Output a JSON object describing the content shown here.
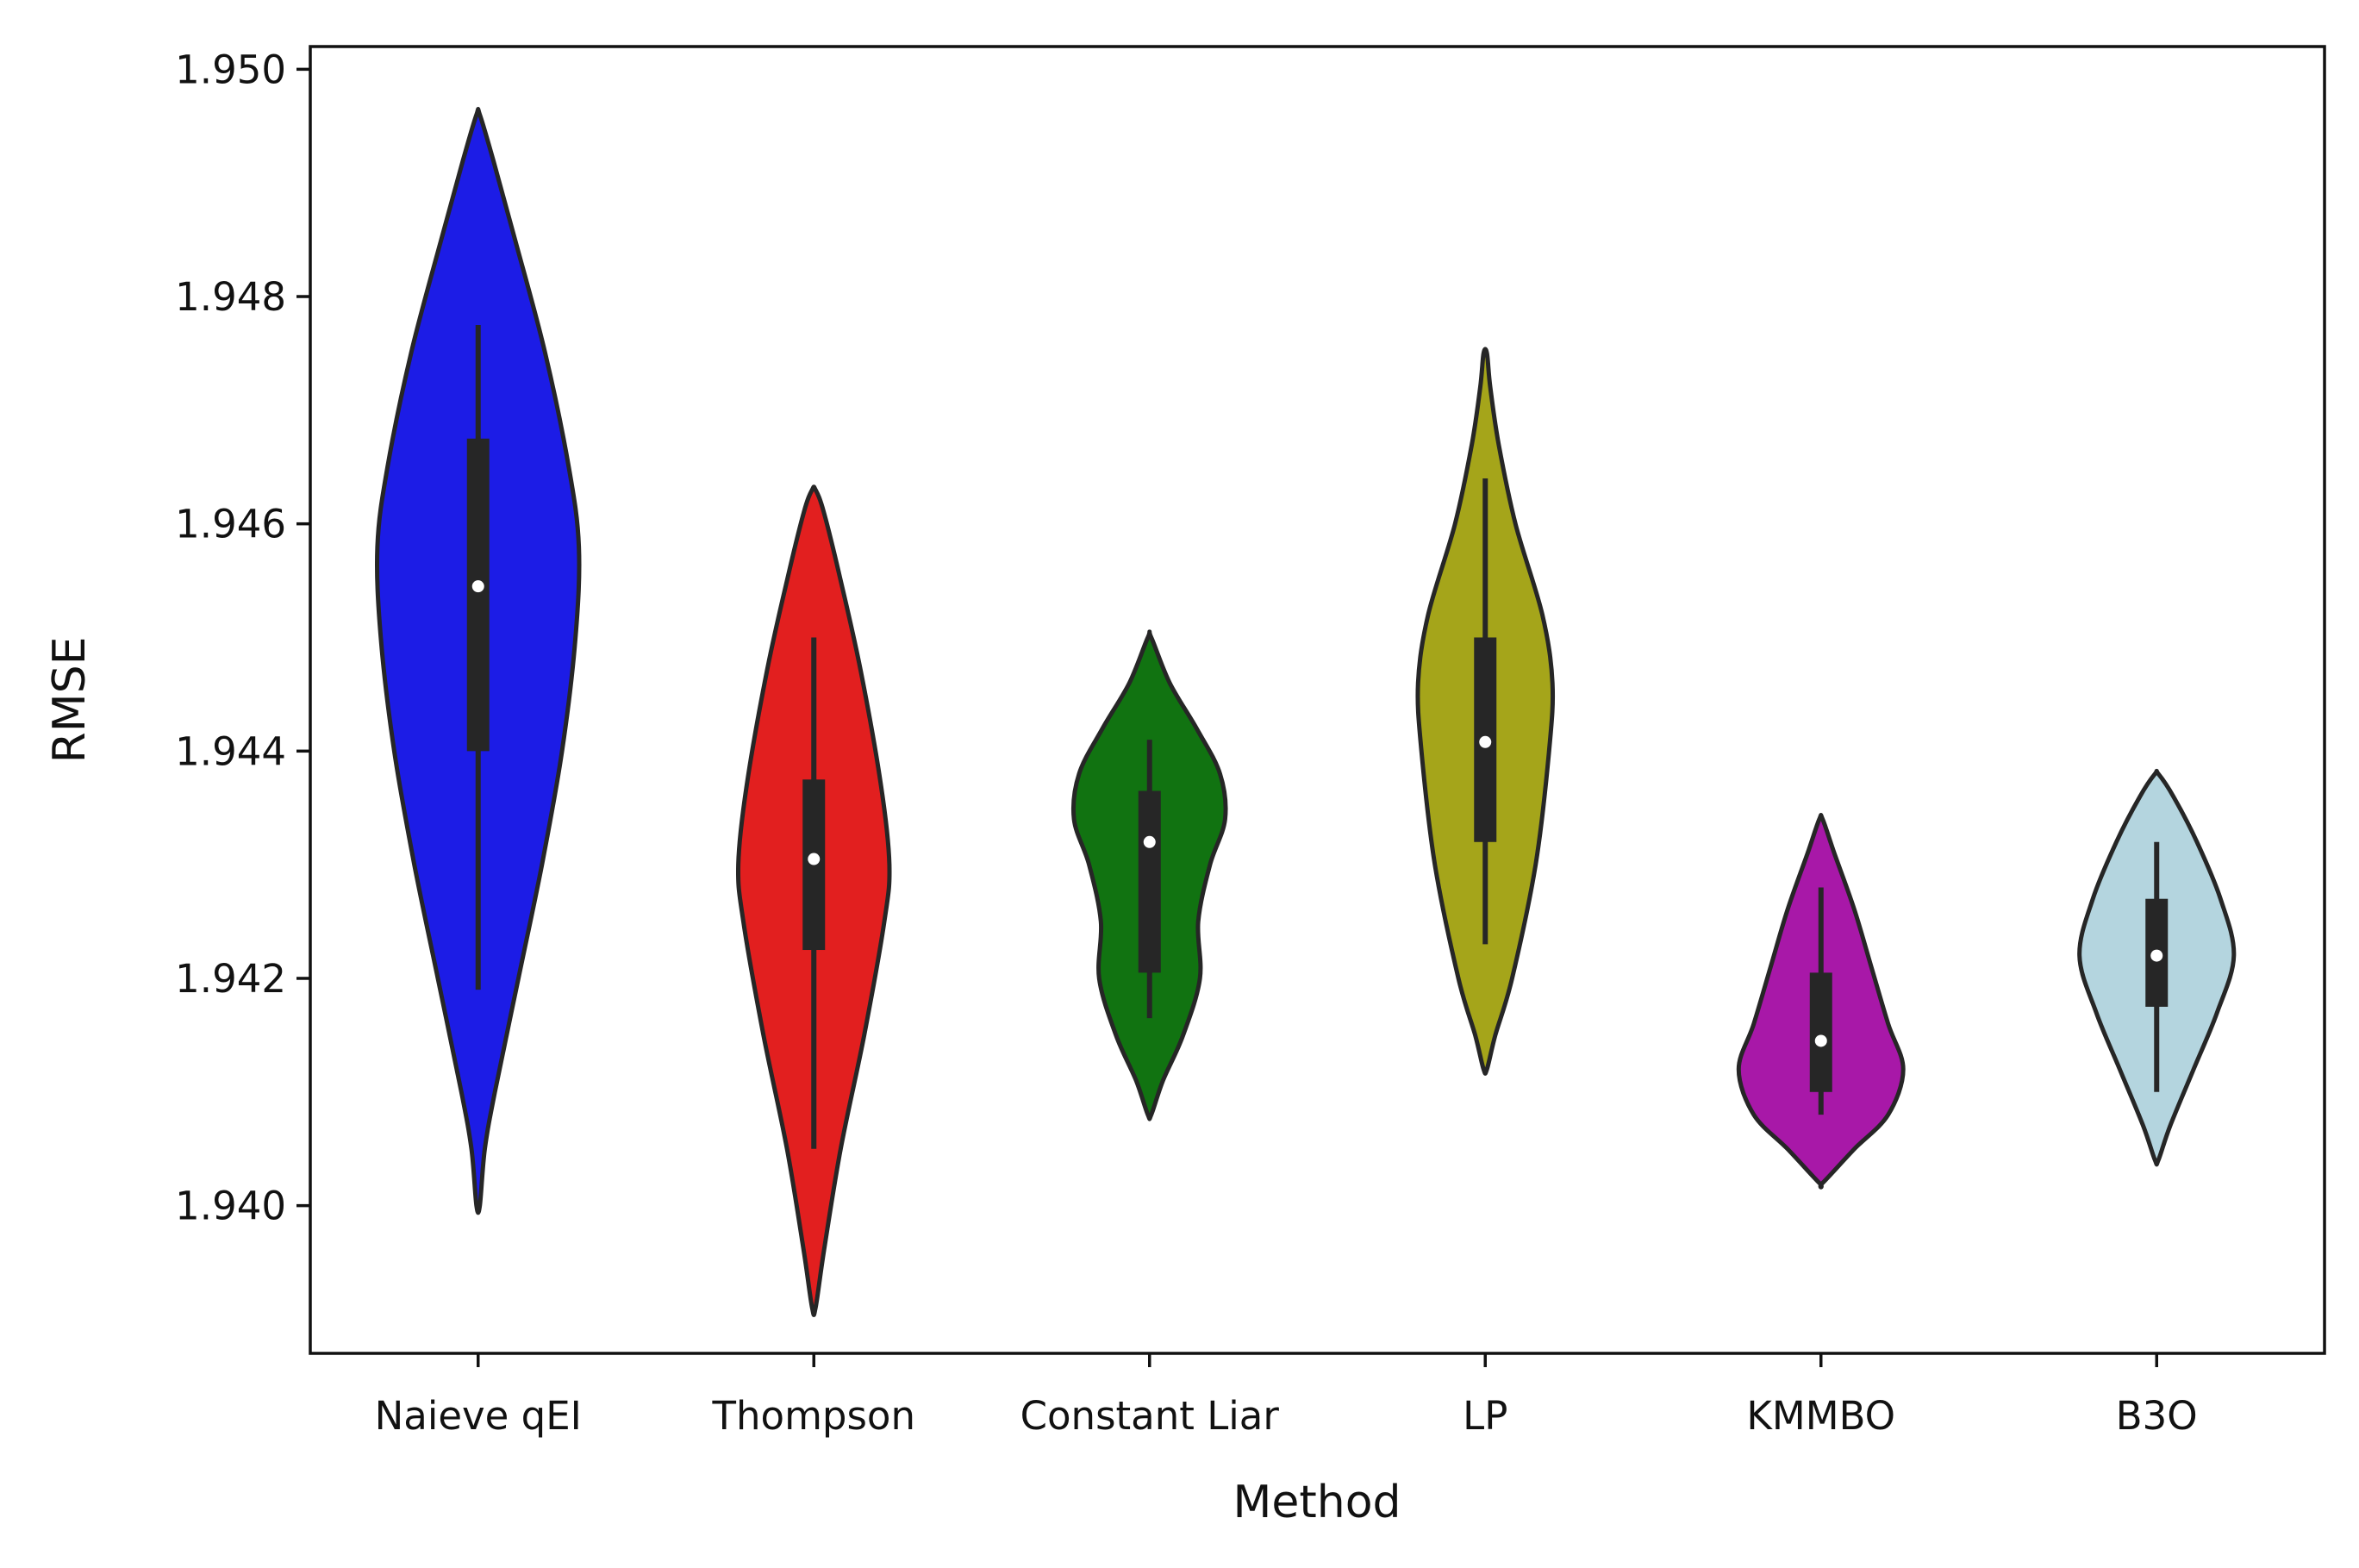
{
  "chart_data": {
    "type": "violin",
    "xlabel": "Method",
    "ylabel": "RMSE",
    "categories": [
      "Naieve qEI",
      "Thompson",
      "Constant Liar",
      "LP",
      "KMMBO",
      "B3O"
    ],
    "ylim": [
      1.9387,
      1.9502
    ],
    "yticks": [
      1.94,
      1.942,
      1.944,
      1.946,
      1.948,
      1.95
    ],
    "ytick_labels": [
      "1.940",
      "1.942",
      "1.944",
      "1.946",
      "1.948",
      "1.950"
    ],
    "grid": false,
    "series": [
      {
        "category": "Naieve qEI",
        "color": "#1c1ce6",
        "box": {
          "whisker_low": 1.9419,
          "q1": 1.944,
          "median": 1.94545,
          "q3": 1.94675,
          "whisker_high": 1.94775
        },
        "density": [
          {
            "y": 1.94,
            "w": 0.005
          },
          {
            "y": 1.9405,
            "w": 0.02
          },
          {
            "y": 1.941,
            "w": 0.05
          },
          {
            "y": 1.942,
            "w": 0.12
          },
          {
            "y": 1.943,
            "w": 0.19
          },
          {
            "y": 1.944,
            "w": 0.25
          },
          {
            "y": 1.945,
            "w": 0.29
          },
          {
            "y": 1.9458,
            "w": 0.3
          },
          {
            "y": 1.9465,
            "w": 0.27
          },
          {
            "y": 1.9475,
            "w": 0.2
          },
          {
            "y": 1.9485,
            "w": 0.11
          },
          {
            "y": 1.9492,
            "w": 0.045
          },
          {
            "y": 1.9496,
            "w": 0.005
          }
        ]
      },
      {
        "category": "Thompson",
        "color": "#e21f1f",
        "box": {
          "whisker_low": 1.9405,
          "q1": 1.94225,
          "median": 1.94305,
          "q3": 1.94375,
          "whisker_high": 1.945
        },
        "density": [
          {
            "y": 1.9391,
            "w": 0.005
          },
          {
            "y": 1.9396,
            "w": 0.03
          },
          {
            "y": 1.9405,
            "w": 0.08
          },
          {
            "y": 1.9415,
            "w": 0.15
          },
          {
            "y": 1.9425,
            "w": 0.21
          },
          {
            "y": 1.943,
            "w": 0.225
          },
          {
            "y": 1.9437,
            "w": 0.2
          },
          {
            "y": 1.9447,
            "w": 0.14
          },
          {
            "y": 1.9455,
            "w": 0.08
          },
          {
            "y": 1.9461,
            "w": 0.03
          },
          {
            "y": 1.9463,
            "w": 0.005
          }
        ]
      },
      {
        "category": "Constant Liar",
        "color": "#117311",
        "box": {
          "whisker_low": 1.94165,
          "q1": 1.94205,
          "median": 1.9432,
          "q3": 1.94365,
          "whisker_high": 1.9441
        },
        "density": [
          {
            "y": 1.9408,
            "w": 0.005
          },
          {
            "y": 1.9411,
            "w": 0.04
          },
          {
            "y": 1.9415,
            "w": 0.1
          },
          {
            "y": 1.942,
            "w": 0.15
          },
          {
            "y": 1.9425,
            "w": 0.145
          },
          {
            "y": 1.943,
            "w": 0.18
          },
          {
            "y": 1.9434,
            "w": 0.225
          },
          {
            "y": 1.9438,
            "w": 0.21
          },
          {
            "y": 1.9442,
            "w": 0.14
          },
          {
            "y": 1.9446,
            "w": 0.06
          },
          {
            "y": 1.945,
            "w": 0.005
          }
        ]
      },
      {
        "category": "LP",
        "color": "#a5a51a",
        "box": {
          "whisker_low": 1.9423,
          "q1": 1.9432,
          "median": 1.94408,
          "q3": 1.945,
          "whisker_high": 1.9464
        },
        "density": [
          {
            "y": 1.9412,
            "w": 0.005
          },
          {
            "y": 1.9415,
            "w": 0.03
          },
          {
            "y": 1.942,
            "w": 0.08
          },
          {
            "y": 1.943,
            "w": 0.15
          },
          {
            "y": 1.944,
            "w": 0.19
          },
          {
            "y": 1.9446,
            "w": 0.2
          },
          {
            "y": 1.9452,
            "w": 0.17
          },
          {
            "y": 1.946,
            "w": 0.09
          },
          {
            "y": 1.9467,
            "w": 0.04
          },
          {
            "y": 1.9472,
            "w": 0.015
          },
          {
            "y": 1.9475,
            "w": 0.005
          }
        ]
      },
      {
        "category": "KMMBO",
        "color": "#a818a8",
        "box": {
          "whisker_low": 1.9408,
          "q1": 1.941,
          "median": 1.94145,
          "q3": 1.94205,
          "whisker_high": 1.9428
        },
        "density": [
          {
            "y": 1.9402,
            "w": 0.005
          },
          {
            "y": 1.9405,
            "w": 0.1
          },
          {
            "y": 1.9408,
            "w": 0.2
          },
          {
            "y": 1.9412,
            "w": 0.245
          },
          {
            "y": 1.9416,
            "w": 0.2
          },
          {
            "y": 1.9421,
            "w": 0.15
          },
          {
            "y": 1.9426,
            "w": 0.1
          },
          {
            "y": 1.9431,
            "w": 0.04
          },
          {
            "y": 1.9434,
            "w": 0.005
          }
        ]
      },
      {
        "category": "B3O",
        "color": "#b4d5df",
        "box": {
          "whisker_low": 1.941,
          "q1": 1.94175,
          "median": 1.9422,
          "q3": 1.9427,
          "whisker_high": 1.9432
        },
        "density": [
          {
            "y": 1.9404,
            "w": 0.005
          },
          {
            "y": 1.9407,
            "w": 0.04
          },
          {
            "y": 1.9412,
            "w": 0.11
          },
          {
            "y": 1.9417,
            "w": 0.18
          },
          {
            "y": 1.9422,
            "w": 0.23
          },
          {
            "y": 1.9427,
            "w": 0.19
          },
          {
            "y": 1.9432,
            "w": 0.12
          },
          {
            "y": 1.9436,
            "w": 0.05
          },
          {
            "y": 1.9438,
            "w": 0.005
          }
        ]
      }
    ]
  }
}
